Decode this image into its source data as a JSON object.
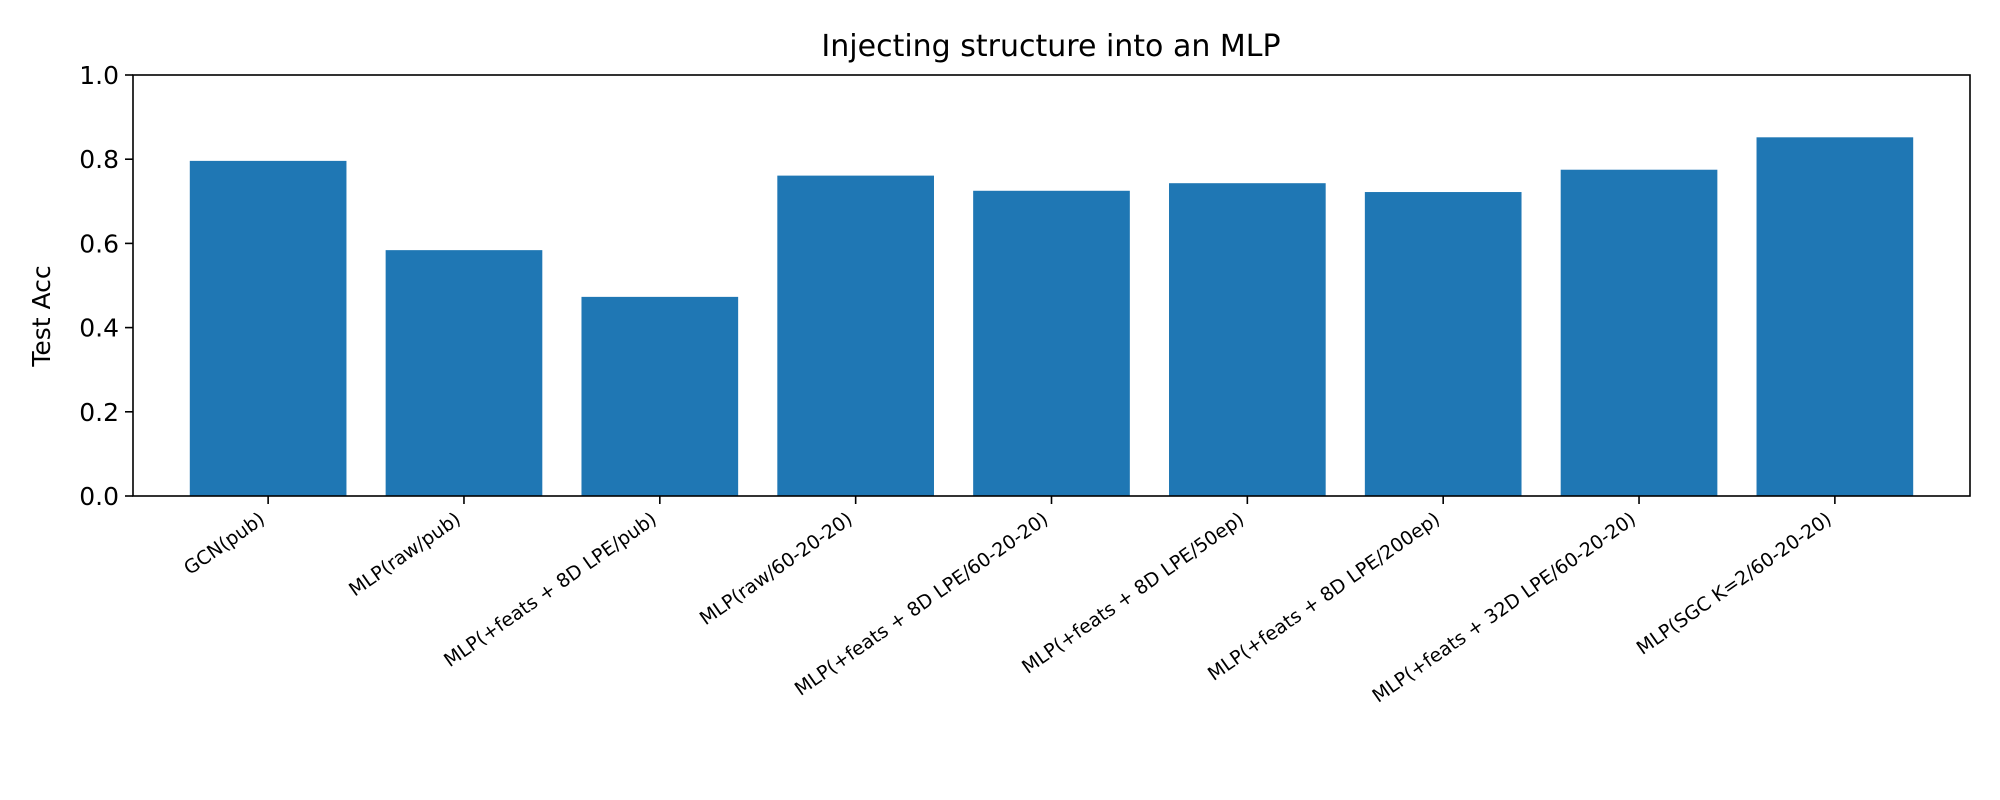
{
  "chart_data": {
    "type": "bar",
    "title": "Injecting structure into an MLP",
    "xlabel": "",
    "ylabel": "Test Acc",
    "ylim": [
      0,
      1.0
    ],
    "yticks": [
      "0.0",
      "0.2",
      "0.4",
      "0.6",
      "0.8",
      "1.0"
    ],
    "categories": [
      "GCN(pub)",
      "MLP(raw/pub)",
      "MLP(+feats + 8D LPE/pub)",
      "MLP(raw/60-20-20)",
      "MLP(+feats + 8D LPE/60-20-20)",
      "MLP(+feats + 8D LPE/50ep)",
      "MLP(+feats + 8D LPE/200ep)",
      "MLP(+feats + 32D LPE/60-20-20)",
      "MLP(SGC K=2/60-20-20)"
    ],
    "values": [
      0.796,
      0.584,
      0.473,
      0.761,
      0.725,
      0.743,
      0.722,
      0.775,
      0.852
    ],
    "bar_color": "#1f77b4",
    "grid": false,
    "legend": "none"
  }
}
